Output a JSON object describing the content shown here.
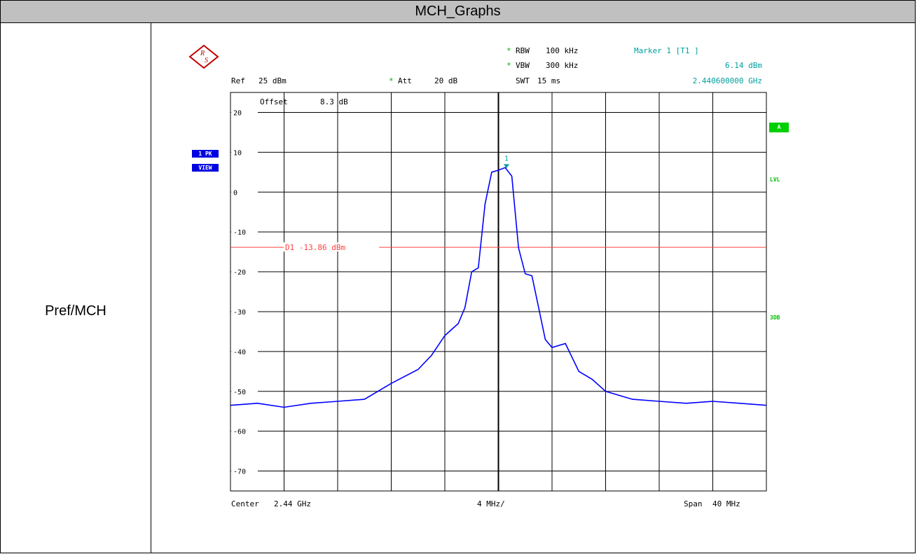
{
  "header": {
    "title": "MCH_Graphs"
  },
  "row": {
    "label": "Pref/MCH"
  },
  "instrument": {
    "logo": "R&S",
    "rbw": {
      "star": "*",
      "label": "RBW",
      "value": "100 kHz"
    },
    "vbw": {
      "star": "*",
      "label": "VBW",
      "value": "300 kHz"
    },
    "swt": {
      "label": "SWT",
      "value": "15 ms"
    },
    "ref": {
      "label": "Ref",
      "value": "25 dBm"
    },
    "att": {
      "star": "*",
      "label": "Att",
      "value": "20 dB"
    },
    "offset": {
      "label": "Offset",
      "value": "8.3 dB"
    },
    "marker": {
      "title": "Marker 1 [T1 ]",
      "level": "6.14 dBm",
      "freq": "2.440600000 GHz"
    },
    "trace_badge": {
      "line1": "1 PK",
      "line2": "VIEW"
    },
    "right_badges": {
      "a": "A",
      "lvl": "LVL",
      "db3": "3DB"
    },
    "center": {
      "label": "Center",
      "value": "2.44 GHz"
    },
    "div": "4 MHz/",
    "span": {
      "label": "Span",
      "value": "40 MHz"
    },
    "marker_symbol": "1",
    "colors": {
      "trace": "#0000ff",
      "display_line": "#ff4040",
      "marker": "#00a0a0",
      "badge_blue": "#0000e0",
      "badge_green": "#00cc00",
      "grid": "#000000"
    }
  },
  "chart_data": {
    "type": "line",
    "xlabel": "",
    "ylabel": "",
    "x_unit": "GHz",
    "xlim": [
      2.42,
      2.46
    ],
    "ylim": [
      -75,
      25
    ],
    "y_ticks": [
      20,
      10,
      0,
      -10,
      -20,
      -30,
      -40,
      -50,
      -60,
      -70
    ],
    "y_tick_labels": [
      "20",
      "10",
      "0",
      "-10",
      "-20",
      "-30",
      "-40",
      "-50",
      "-60",
      "-70"
    ],
    "grid": true,
    "display_line": {
      "name": "D1",
      "value": -13.86,
      "label": "D1 -13.86 dBm"
    },
    "marker": {
      "x": 2.4406,
      "y": 6.14
    },
    "series": [
      {
        "x": [
          2.42,
          2.422,
          2.424,
          2.426,
          2.428,
          2.43,
          2.432,
          2.434,
          2.435,
          2.436,
          2.437,
          2.4375,
          2.438,
          2.4385,
          2.439,
          2.4395,
          2.44,
          2.4405,
          2.441,
          2.4415,
          2.442,
          2.4425,
          2.443,
          2.4435,
          2.444,
          2.445,
          2.446,
          2.447,
          2.448,
          2.45,
          2.452,
          2.454,
          2.456,
          2.458,
          2.46
        ],
        "y": [
          -53.5,
          -53,
          -54,
          -53,
          -52.5,
          -52,
          -48,
          -44.5,
          -41,
          -36,
          -33,
          -29,
          -20,
          -19,
          -3,
          5,
          5.5,
          6.14,
          4,
          -14,
          -20.5,
          -21,
          -29,
          -37,
          -39,
          -38,
          -45,
          -47,
          -50,
          -52,
          -52.5,
          -53,
          -52.5,
          -53,
          -53.5
        ]
      }
    ]
  }
}
